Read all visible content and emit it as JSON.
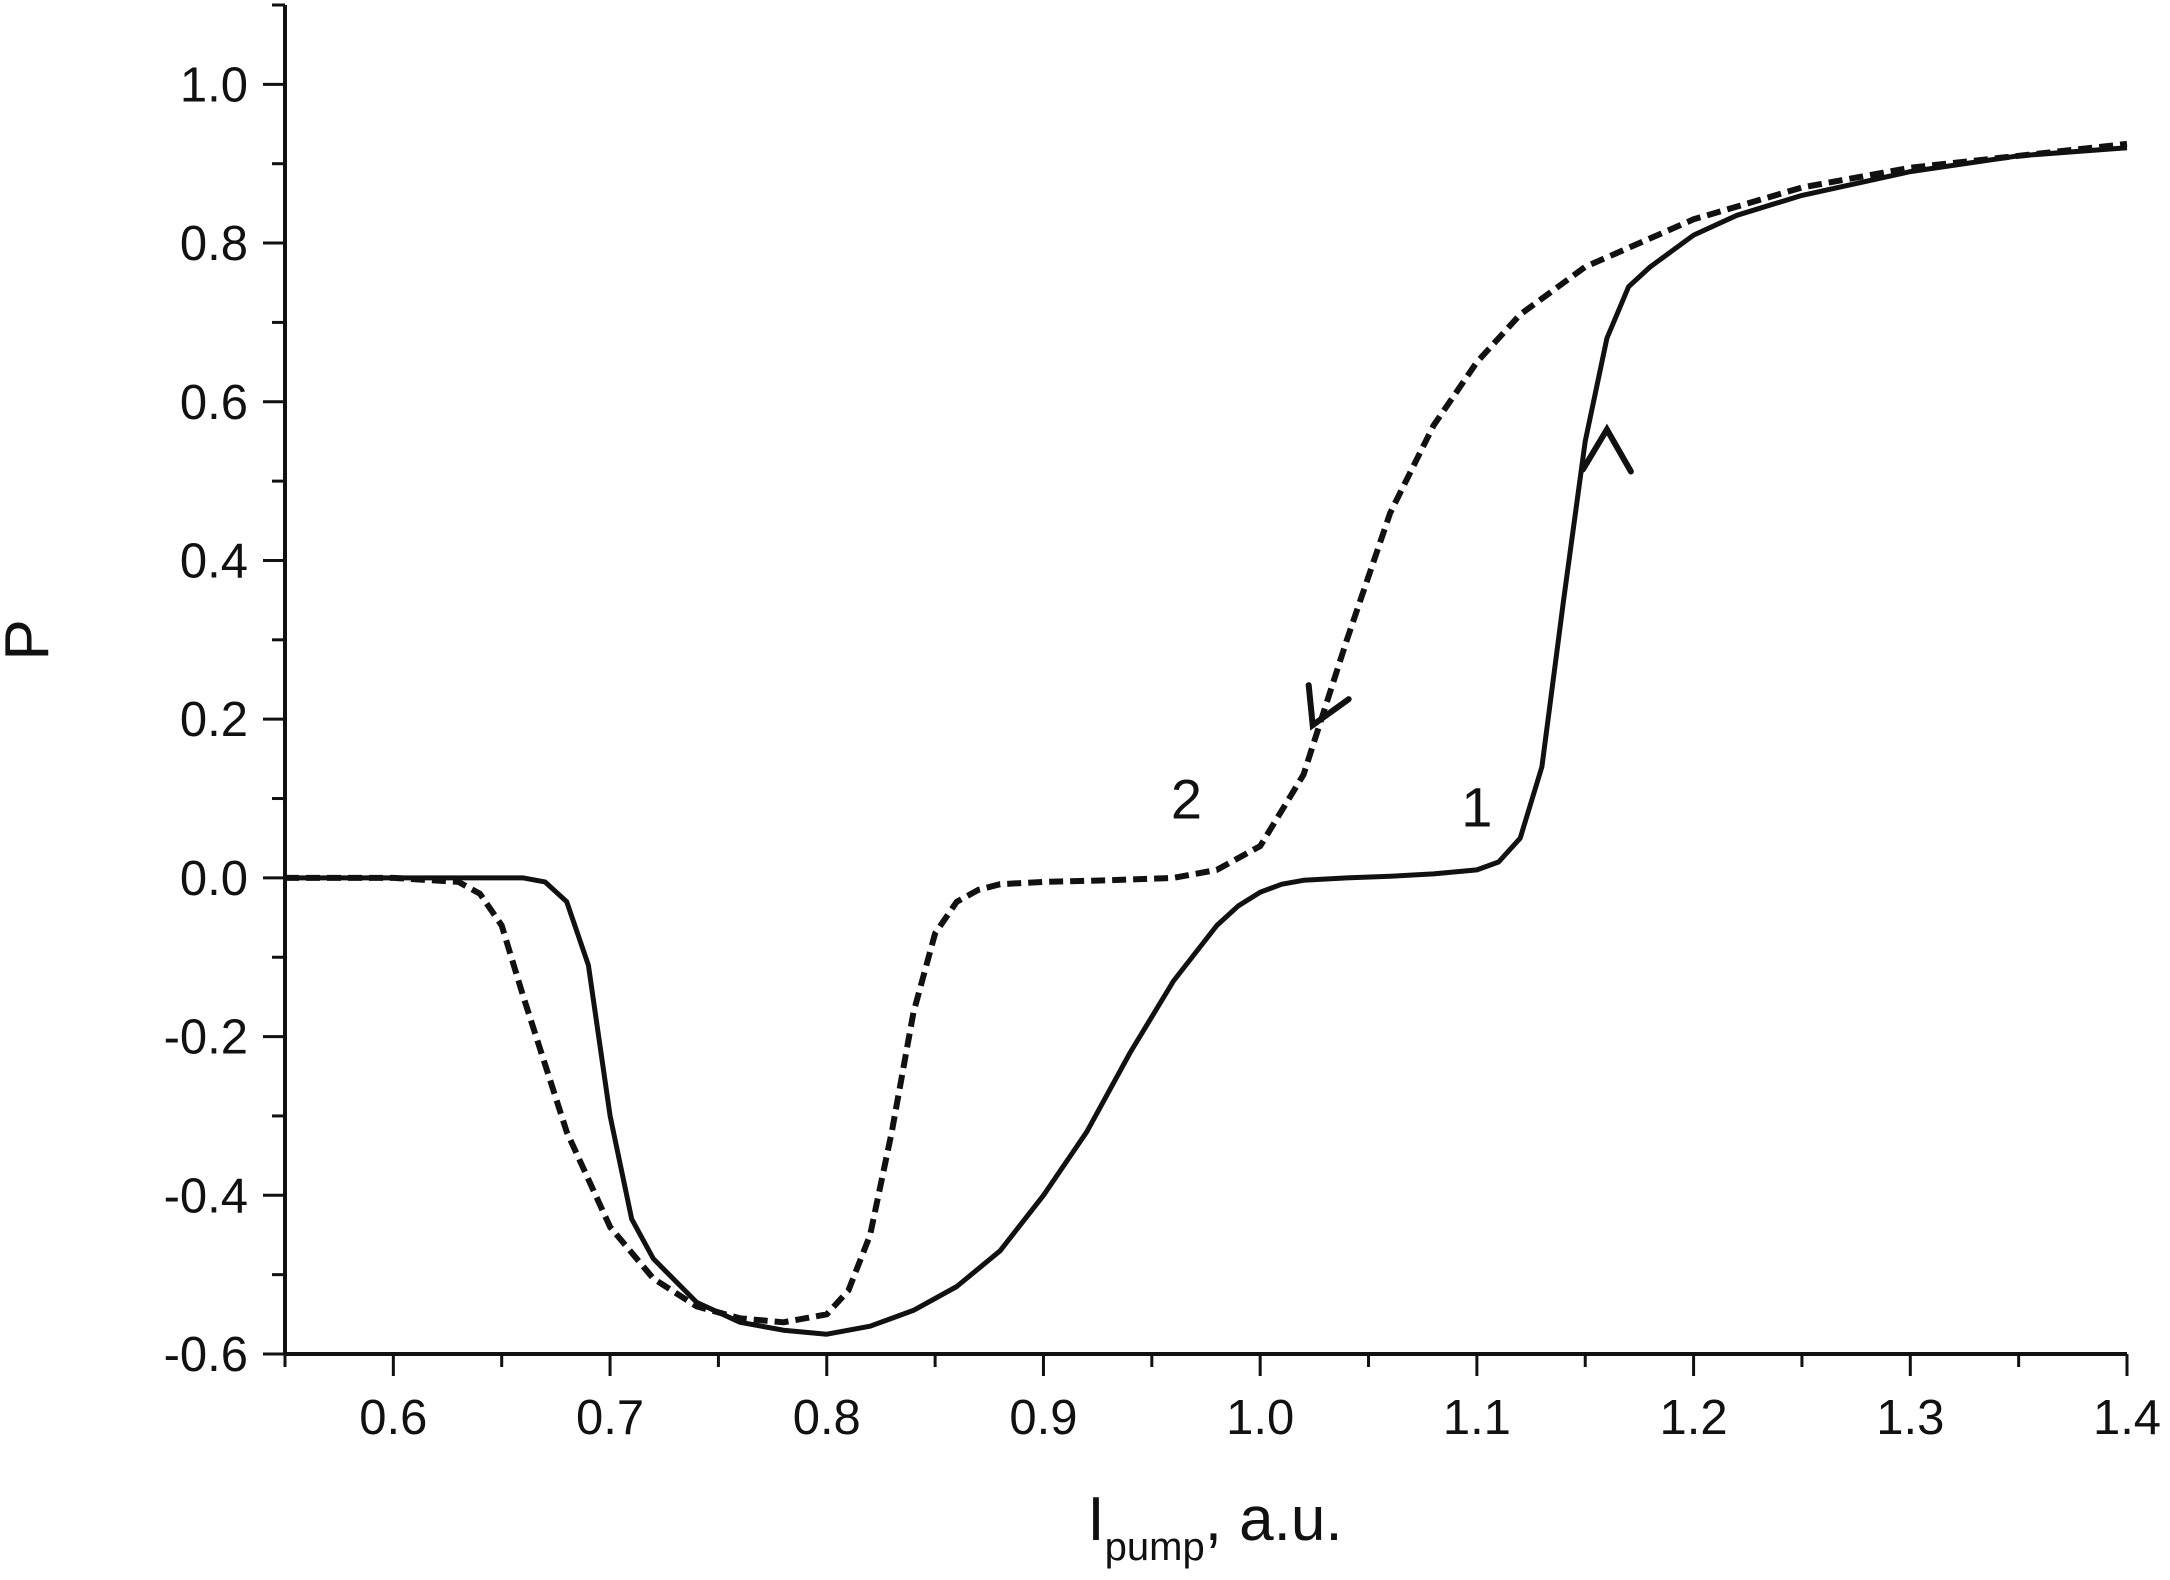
{
  "chart_data": {
    "type": "line",
    "xlabel_main": "I",
    "xlabel_sub": "pump",
    "xlabel_suffix": ", a.u.",
    "ylabel": "P",
    "xlim": [
      0.55,
      1.4
    ],
    "ylim": [
      -0.6,
      1.1
    ],
    "xticks": [
      0.6,
      0.7,
      0.8,
      0.9,
      1.0,
      1.1,
      1.2,
      1.3,
      1.4
    ],
    "xtick_labels": [
      "0.6",
      "0.7",
      "0.8",
      "0.9",
      "1.0",
      "1.1",
      "1.2",
      "1.3",
      "1.4"
    ],
    "yticks": [
      -0.6,
      -0.4,
      -0.2,
      0.0,
      0.2,
      0.4,
      0.6,
      0.8,
      1.0
    ],
    "ytick_labels": [
      "-0.6",
      "-0.4",
      "-0.2",
      "0.0",
      "0.2",
      "0.4",
      "0.6",
      "0.8",
      "1.0"
    ],
    "grid": false,
    "legend": "none",
    "series": [
      {
        "name": "1",
        "style": "solid",
        "color": "#111111",
        "x": [
          0.55,
          0.6,
          0.64,
          0.66,
          0.67,
          0.68,
          0.69,
          0.7,
          0.71,
          0.72,
          0.74,
          0.76,
          0.78,
          0.8,
          0.82,
          0.84,
          0.86,
          0.88,
          0.9,
          0.92,
          0.94,
          0.96,
          0.98,
          0.99,
          1.0,
          1.01,
          1.02,
          1.04,
          1.06,
          1.08,
          1.1,
          1.11,
          1.12,
          1.13,
          1.14,
          1.15,
          1.16,
          1.17,
          1.18,
          1.19,
          1.2,
          1.22,
          1.25,
          1.3,
          1.35,
          1.4
        ],
        "y": [
          0.0,
          0.0,
          0.0,
          0.0,
          -0.005,
          -0.03,
          -0.11,
          -0.3,
          -0.43,
          -0.48,
          -0.535,
          -0.56,
          -0.57,
          -0.575,
          -0.565,
          -0.545,
          -0.515,
          -0.47,
          -0.4,
          -0.32,
          -0.22,
          -0.13,
          -0.06,
          -0.035,
          -0.018,
          -0.008,
          -0.003,
          0.0,
          0.002,
          0.005,
          0.01,
          0.02,
          0.05,
          0.14,
          0.35,
          0.55,
          0.68,
          0.745,
          0.77,
          0.79,
          0.81,
          0.835,
          0.86,
          0.89,
          0.91,
          0.92
        ]
      },
      {
        "name": "2",
        "style": "dashed",
        "color": "#111111",
        "x": [
          0.55,
          0.6,
          0.63,
          0.64,
          0.65,
          0.66,
          0.68,
          0.7,
          0.72,
          0.74,
          0.76,
          0.78,
          0.8,
          0.81,
          0.82,
          0.83,
          0.84,
          0.85,
          0.86,
          0.87,
          0.88,
          0.9,
          0.93,
          0.96,
          0.98,
          1.0,
          1.02,
          1.04,
          1.06,
          1.08,
          1.1,
          1.12,
          1.15,
          1.2,
          1.25,
          1.3,
          1.35,
          1.4
        ],
        "y": [
          0.0,
          0.0,
          -0.005,
          -0.02,
          -0.06,
          -0.15,
          -0.32,
          -0.44,
          -0.505,
          -0.54,
          -0.555,
          -0.56,
          -0.55,
          -0.52,
          -0.45,
          -0.32,
          -0.17,
          -0.07,
          -0.03,
          -0.015,
          -0.008,
          -0.005,
          -0.003,
          0.0,
          0.01,
          0.04,
          0.13,
          0.3,
          0.46,
          0.57,
          0.65,
          0.71,
          0.77,
          0.83,
          0.87,
          0.895,
          0.91,
          0.925
        ]
      }
    ],
    "annotations": [
      {
        "text": "1",
        "x": 1.1,
        "y": 0.065
      },
      {
        "text": "2",
        "x": 0.966,
        "y": 0.075
      }
    ],
    "arrows": [
      {
        "series": "1",
        "direction": "up",
        "x": 1.16,
        "y": 0.56
      },
      {
        "series": "2",
        "direction": "down",
        "x": 1.027,
        "y": 0.2
      }
    ]
  }
}
